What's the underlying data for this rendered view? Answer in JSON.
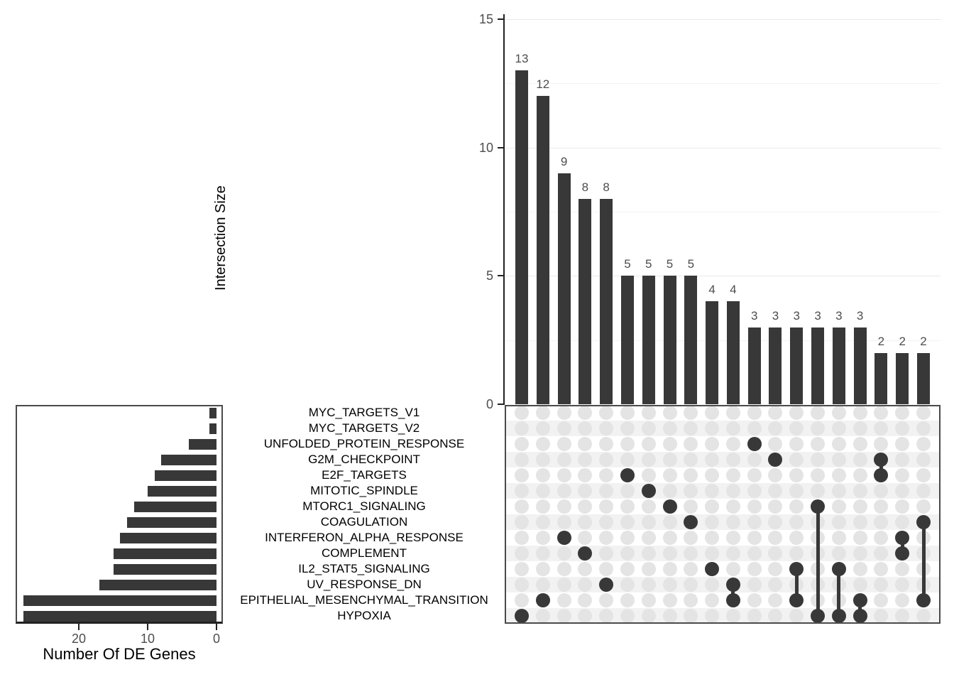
{
  "colors": {
    "bar": "#383838",
    "dot_empty": "#e4e4e4",
    "dot_filled": "#383838",
    "connector": "#383838",
    "tick_text": "#4d4d4d",
    "label_text": "#000000",
    "grid_major": "#e9e9e9",
    "grid_minor": "#f3f3f3",
    "stripe": "#f2f2f2",
    "panel_border": "#4a4a4a",
    "axis": "#222222"
  },
  "sets": [
    "MYC_TARGETS_V1",
    "MYC_TARGETS_V2",
    "UNFOLDED_PROTEIN_RESPONSE",
    "G2M_CHECKPOINT",
    "E2F_TARGETS",
    "MITOTIC_SPINDLE",
    "MTORC1_SIGNALING",
    "COAGULATION",
    "INTERFERON_ALPHA_RESPONSE",
    "COMPLEMENT",
    "IL2_STAT5_SIGNALING",
    "UV_RESPONSE_DN",
    "EPITHELIAL_MESENCHYMAL_TRANSITION",
    "HYPOXIA"
  ],
  "chart_data": [
    {
      "type": "bar",
      "title": "",
      "ylabel": "Intersection Size",
      "xlabel": "",
      "values": [
        13,
        12,
        9,
        8,
        8,
        5,
        5,
        5,
        5,
        4,
        4,
        3,
        3,
        3,
        3,
        3,
        3,
        2,
        2,
        2
      ],
      "yticks": [
        0,
        5,
        10,
        15
      ],
      "minor_gridlines": [
        2.5,
        7.5,
        12.5
      ],
      "ylim": [
        0,
        15
      ],
      "grid": true,
      "bar_labels_shown": true,
      "legend": "none"
    },
    {
      "type": "bar",
      "orientation": "horizontal",
      "title": "",
      "xlabel": "Number Of DE Genes",
      "ylabel": "",
      "categories": [
        "MYC_TARGETS_V1",
        "MYC_TARGETS_V2",
        "UNFOLDED_PROTEIN_RESPONSE",
        "G2M_CHECKPOINT",
        "E2F_TARGETS",
        "MITOTIC_SPINDLE",
        "MTORC1_SIGNALING",
        "COAGULATION",
        "INTERFERON_ALPHA_RESPONSE",
        "COMPLEMENT",
        "IL2_STAT5_SIGNALING",
        "UV_RESPONSE_DN",
        "EPITHELIAL_MESENCHYMAL_TRANSITION",
        "HYPOXIA"
      ],
      "values": [
        1,
        1,
        4,
        8,
        9,
        10,
        12,
        13,
        14,
        15,
        15,
        17,
        28,
        28
      ],
      "xticks": [
        20,
        10,
        0
      ],
      "xlim": [
        29,
        0
      ],
      "axis_reversed": true,
      "grid": false,
      "legend": "none"
    },
    {
      "type": "heatmap",
      "subtype": "upset-membership-matrix",
      "rows": [
        "MYC_TARGETS_V1",
        "MYC_TARGETS_V2",
        "UNFOLDED_PROTEIN_RESPONSE",
        "G2M_CHECKPOINT",
        "E2F_TARGETS",
        "MITOTIC_SPINDLE",
        "MTORC1_SIGNALING",
        "COAGULATION",
        "INTERFERON_ALPHA_RESPONSE",
        "COMPLEMENT",
        "IL2_STAT5_SIGNALING",
        "UV_RESPONSE_DN",
        "EPITHELIAL_MESENCHYMAL_TRANSITION",
        "HYPOXIA"
      ],
      "columns": [
        {
          "size": 13,
          "member_sets": [
            "HYPOXIA"
          ]
        },
        {
          "size": 12,
          "member_sets": [
            "EPITHELIAL_MESENCHYMAL_TRANSITION"
          ]
        },
        {
          "size": 9,
          "member_sets": [
            "INTERFERON_ALPHA_RESPONSE"
          ]
        },
        {
          "size": 8,
          "member_sets": [
            "COMPLEMENT"
          ]
        },
        {
          "size": 8,
          "member_sets": [
            "UV_RESPONSE_DN"
          ]
        },
        {
          "size": 5,
          "member_sets": [
            "E2F_TARGETS"
          ]
        },
        {
          "size": 5,
          "member_sets": [
            "MITOTIC_SPINDLE"
          ]
        },
        {
          "size": 5,
          "member_sets": [
            "MTORC1_SIGNALING"
          ]
        },
        {
          "size": 5,
          "member_sets": [
            "COAGULATION"
          ]
        },
        {
          "size": 4,
          "member_sets": [
            "IL2_STAT5_SIGNALING"
          ]
        },
        {
          "size": 4,
          "member_sets": [
            "UV_RESPONSE_DN",
            "EPITHELIAL_MESENCHYMAL_TRANSITION"
          ]
        },
        {
          "size": 3,
          "member_sets": [
            "UNFOLDED_PROTEIN_RESPONSE"
          ]
        },
        {
          "size": 3,
          "member_sets": [
            "G2M_CHECKPOINT"
          ]
        },
        {
          "size": 3,
          "member_sets": [
            "IL2_STAT5_SIGNALING",
            "EPITHELIAL_MESENCHYMAL_TRANSITION"
          ]
        },
        {
          "size": 3,
          "member_sets": [
            "MTORC1_SIGNALING",
            "HYPOXIA"
          ]
        },
        {
          "size": 3,
          "member_sets": [
            "IL2_STAT5_SIGNALING",
            "HYPOXIA"
          ]
        },
        {
          "size": 3,
          "member_sets": [
            "EPITHELIAL_MESENCHYMAL_TRANSITION",
            "HYPOXIA"
          ]
        },
        {
          "size": 2,
          "member_sets": [
            "G2M_CHECKPOINT",
            "E2F_TARGETS"
          ]
        },
        {
          "size": 2,
          "member_sets": [
            "INTERFERON_ALPHA_RESPONSE",
            "COMPLEMENT"
          ]
        },
        {
          "size": 2,
          "member_sets": [
            "COAGULATION",
            "EPITHELIAL_MESENCHYMAL_TRANSITION"
          ]
        }
      ]
    }
  ]
}
